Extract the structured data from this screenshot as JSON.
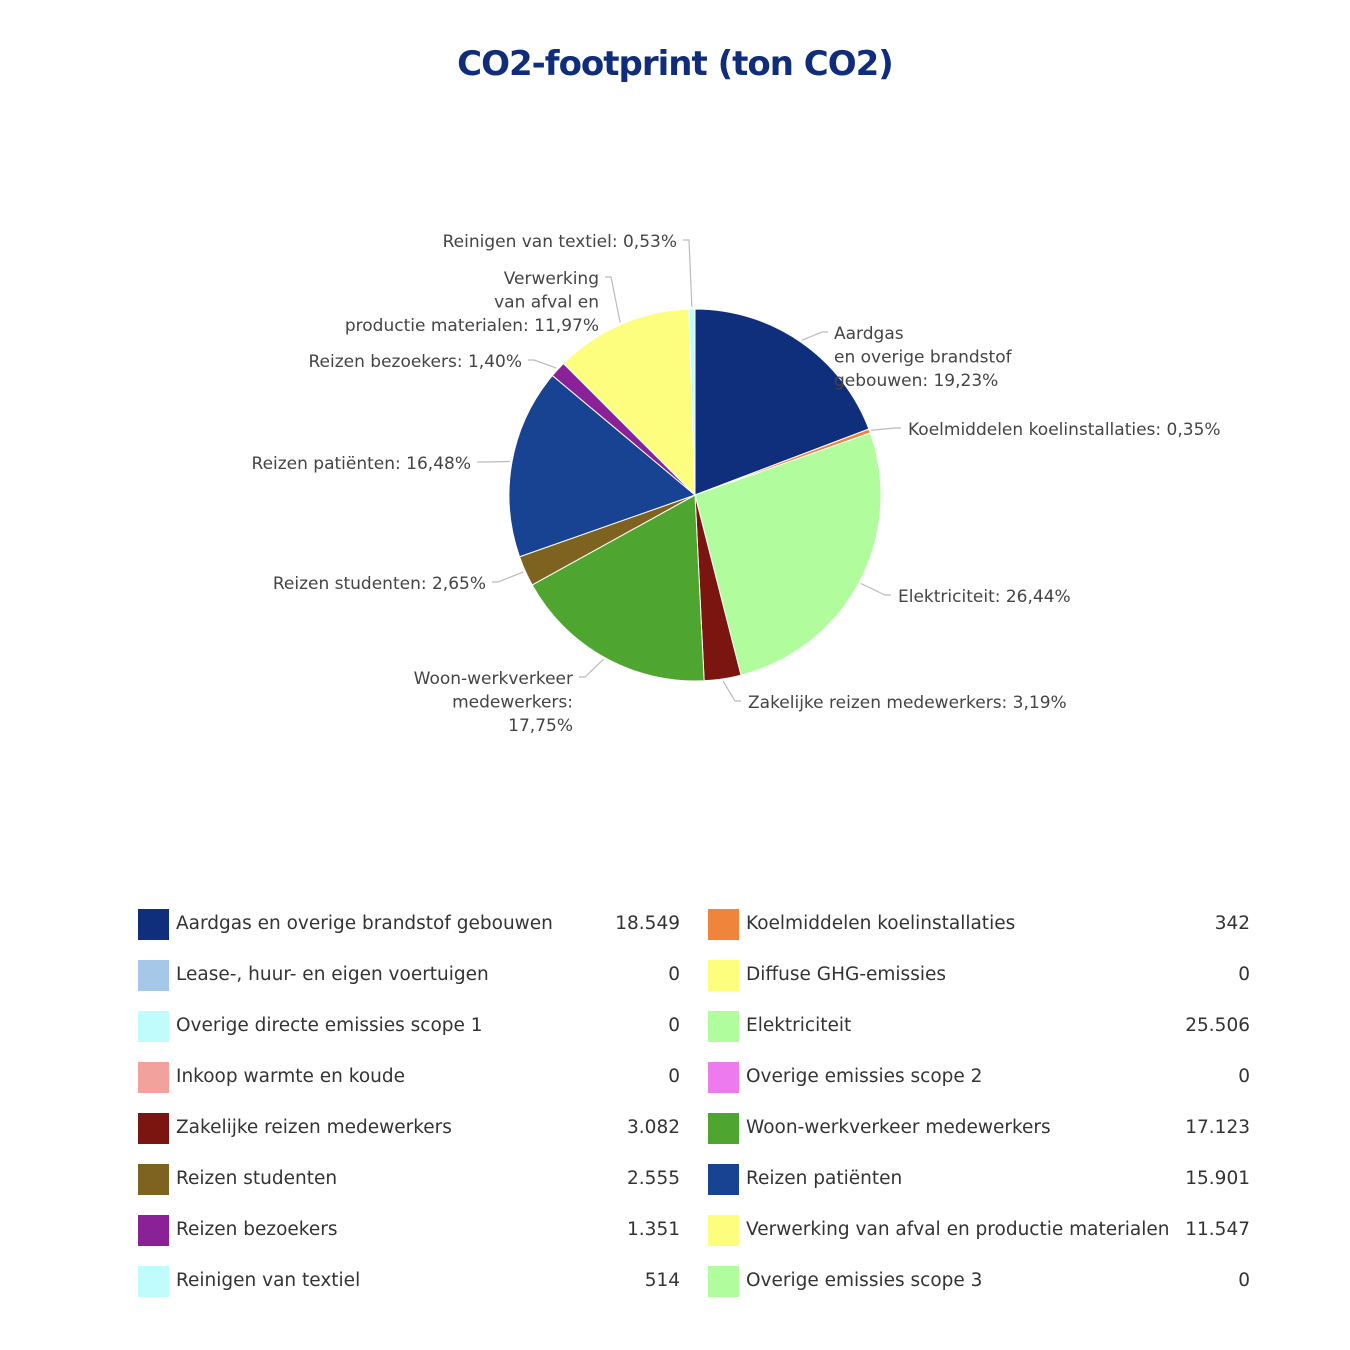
{
  "chart_data": {
    "type": "pie",
    "title": "CO2-footprint (ton CO2)",
    "slices": [
      {
        "name": "Aardgas en overige brandstof gebouwen",
        "value": 18549,
        "percent": 19.23,
        "color": "#0f2f7d",
        "label_lines": [
          "Aardgas",
          "en overige brandstof",
          "gebouwen: 19,23%"
        ],
        "label_side": "right"
      },
      {
        "name": "Koelmiddelen koelinstallaties",
        "value": 342,
        "percent": 0.35,
        "color": "#f0843a",
        "label_lines": [
          "Koelmiddelen koelinstallaties: 0,35%"
        ],
        "label_side": "right"
      },
      {
        "name": "Elektriciteit",
        "value": 25506,
        "percent": 26.44,
        "color": "#b1fd9d",
        "label_lines": [
          "Elektriciteit: 26,44%"
        ],
        "label_side": "right"
      },
      {
        "name": "Zakelijke reizen medewerkers",
        "value": 3082,
        "percent": 3.19,
        "color": "#7b1510",
        "label_lines": [
          "Zakelijke reizen medewerkers: 3,19%"
        ],
        "label_side": "right"
      },
      {
        "name": "Woon-werkverkeer medewerkers",
        "value": 17123,
        "percent": 17.75,
        "color": "#4ea630",
        "label_lines": [
          "Woon-werkverkeer",
          "medewerkers:",
          "17,75%"
        ],
        "label_side": "left"
      },
      {
        "name": "Reizen studenten",
        "value": 2555,
        "percent": 2.65,
        "color": "#7e6320",
        "label_lines": [
          "Reizen studenten: 2,65%"
        ],
        "label_side": "left"
      },
      {
        "name": "Reizen patiënten",
        "value": 15901,
        "percent": 16.48,
        "color": "#184392",
        "label_lines": [
          "Reizen patiënten: 16,48%"
        ],
        "label_side": "left"
      },
      {
        "name": "Reizen bezoekers",
        "value": 1351,
        "percent": 1.4,
        "color": "#8b2196",
        "label_lines": [
          "Reizen bezoekers: 1,40%"
        ],
        "label_side": "left"
      },
      {
        "name": "Verwerking van afval en productie materialen",
        "value": 11547,
        "percent": 11.97,
        "color": "#fdfd7e",
        "label_lines": [
          "Verwerking",
          "van afval en",
          "productie materialen: 11,97%"
        ],
        "label_side": "left"
      },
      {
        "name": "Reinigen van textiel",
        "value": 514,
        "percent": 0.53,
        "color": "#c1fcfc",
        "label_lines": [
          "Reinigen van textiel: 0,53%"
        ],
        "label_side": "left"
      }
    ],
    "legend": {
      "left": [
        {
          "name": "Aardgas en overige brandstof gebouwen",
          "value": "18.549",
          "color": "#0f2f7d"
        },
        {
          "name": "Lease-, huur- en eigen voertuigen",
          "value": "0",
          "color": "#a7c7e9"
        },
        {
          "name": "Overige directe emissies scope 1",
          "value": "0",
          "color": "#c1fcfc"
        },
        {
          "name": "Inkoop warmte en koude",
          "value": "0",
          "color": "#f3a19c"
        },
        {
          "name": "Zakelijke reizen medewerkers",
          "value": "3.082",
          "color": "#7b1510"
        },
        {
          "name": "Reizen studenten",
          "value": "2.555",
          "color": "#7e6320"
        },
        {
          "name": "Reizen bezoekers",
          "value": "1.351",
          "color": "#8b2196"
        },
        {
          "name": "Reinigen van textiel",
          "value": "514",
          "color": "#c1fcfc"
        }
      ],
      "right": [
        {
          "name": "Koelmiddelen koelinstallaties",
          "value": "342",
          "color": "#f0843a"
        },
        {
          "name": "Diffuse GHG-emissies",
          "value": "0",
          "color": "#fdfd7e"
        },
        {
          "name": "Elektriciteit",
          "value": "25.506",
          "color": "#b1fd9d"
        },
        {
          "name": "Overige emissies scope 2",
          "value": "0",
          "color": "#ee7bee"
        },
        {
          "name": "Woon-werkverkeer medewerkers",
          "value": "17.123",
          "color": "#4ea630"
        },
        {
          "name": "Reizen patiënten",
          "value": "15.901",
          "color": "#184392"
        },
        {
          "name": "Verwerking van afval en productie materialen",
          "value": "11.547",
          "color": "#fdfd7e"
        },
        {
          "name": "Overige emissies scope 3",
          "value": "0",
          "color": "#b1fd9d"
        }
      ]
    }
  }
}
